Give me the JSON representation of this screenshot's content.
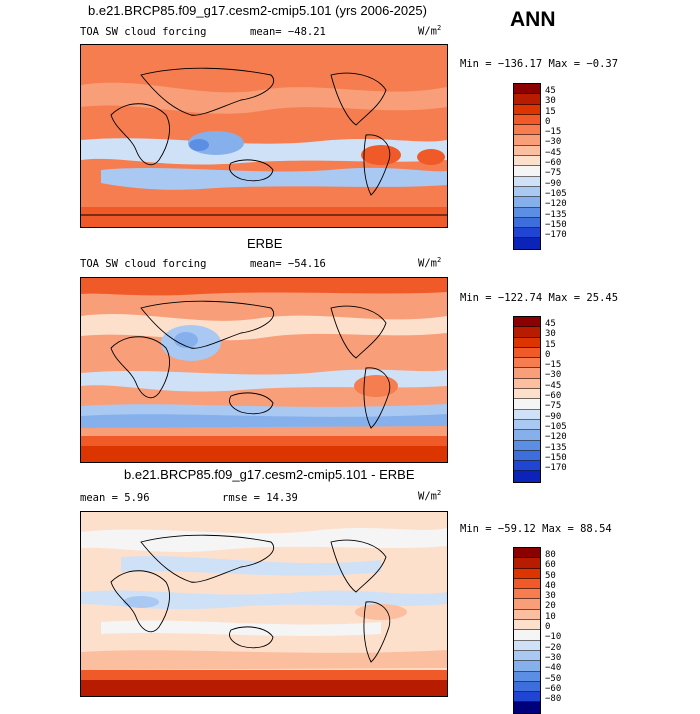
{
  "season": "ANN",
  "panels": [
    {
      "title": "b.e21.BRCP85.f09_g17.cesm2-cmip5.101 (yrs 2006-2025)",
      "variable": "TOA SW cloud forcing",
      "mean": "mean= −48.21",
      "units": "W/m",
      "units_sup": "2",
      "minmax": "Min = −136.17 Max =  −0.37",
      "colorbar": [
        "45",
        "30",
        "15",
        "0",
        "−15",
        "−30",
        "−45",
        "−60",
        "−75",
        "−90",
        "−105",
        "−120",
        "−135",
        "−150",
        "−170"
      ]
    },
    {
      "title": "ERBE",
      "variable": "TOA SW cloud forcing",
      "mean": "mean= −54.16",
      "units": "W/m",
      "units_sup": "2",
      "minmax": "Min = −122.74 Max =  25.45",
      "colorbar": [
        "45",
        "30",
        "15",
        "0",
        "−15",
        "−30",
        "−45",
        "−60",
        "−75",
        "−90",
        "−105",
        "−120",
        "−135",
        "−150",
        "−170"
      ]
    },
    {
      "title": "b.e21.BRCP85.f09_g17.cesm2-cmip5.101 - ERBE",
      "mean": "mean =   5.96",
      "rmse": "rmse =  14.39",
      "units": "W/m",
      "units_sup": "2",
      "minmax": "Min = −59.12 Max =  88.54",
      "colorbar": [
        "80",
        "60",
        "50",
        "40",
        "30",
        "20",
        "10",
        "0",
        "−10",
        "−20",
        "−30",
        "−40",
        "−50",
        "−60",
        "−80"
      ]
    }
  ],
  "colors": {
    "scale": [
      "#8b0000",
      "#b71c00",
      "#dc3500",
      "#f05a28",
      "#f57d50",
      "#f89e78",
      "#fbbfa0",
      "#fde0cc",
      "#f5f5f5",
      "#cfe1f7",
      "#a9c9f2",
      "#86b0ec",
      "#5c8fe3",
      "#3d6edc",
      "#2045d2",
      "#0b23b8",
      "#00007a"
    ]
  }
}
